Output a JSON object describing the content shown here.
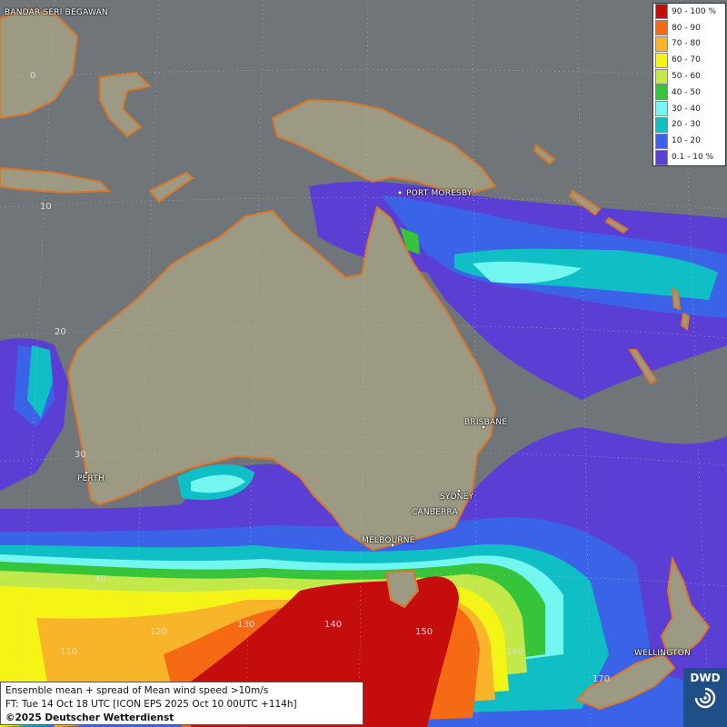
{
  "map": {
    "colors": {
      "ocean": "#6f7578",
      "land": "#9c9a82",
      "coast": "#d9772b",
      "bin_0": "#5b3fd4",
      "bin_10": "#3b63e8",
      "bin_20": "#10bfc5",
      "bin_30": "#74f6f0",
      "bin_40": "#36c43a",
      "bin_50": "#c2e84a",
      "bin_60": "#f4f416",
      "bin_70": "#f9b52a",
      "bin_80": "#f66a14",
      "bin_90": "#c50d0d"
    },
    "cities": [
      "BANDAR SERI BEGAWAN",
      "PORT MORESBY",
      "BRISBANE",
      "PERTH",
      "SYDNEY",
      "CANBERRA",
      "MELBOURNE",
      "WELLINGTON"
    ],
    "grid_labels": [
      "0",
      "10",
      "20",
      "30",
      "40",
      "110",
      "120",
      "130",
      "140",
      "150",
      "160",
      "170"
    ]
  },
  "legend": {
    "items": [
      {
        "label": "90 - 100 %",
        "color": "#c50d0d"
      },
      {
        "label": "80 - 90",
        "color": "#f66a14"
      },
      {
        "label": "70 - 80",
        "color": "#f9b52a"
      },
      {
        "label": "60 - 70",
        "color": "#f4f416"
      },
      {
        "label": "50 - 60",
        "color": "#c2e84a"
      },
      {
        "label": "40 - 50",
        "color": "#36c43a"
      },
      {
        "label": "30 - 40",
        "color": "#74f6f0"
      },
      {
        "label": "20 - 30",
        "color": "#10bfc5"
      },
      {
        "label": "10 - 20",
        "color": "#3b63e8"
      },
      {
        "label": "0.1 - 10 %",
        "color": "#5b3fd4"
      }
    ]
  },
  "info": {
    "line1": "Ensemble mean + spread of Mean wind speed >10m/s",
    "line2": "FT: Tue 14 Oct 18 UTC [ICON EPS 2025 Oct 10 00UTC +114h]",
    "line3": "©2025 Deutscher Wetterdienst"
  },
  "logo": {
    "text": "DWD"
  }
}
